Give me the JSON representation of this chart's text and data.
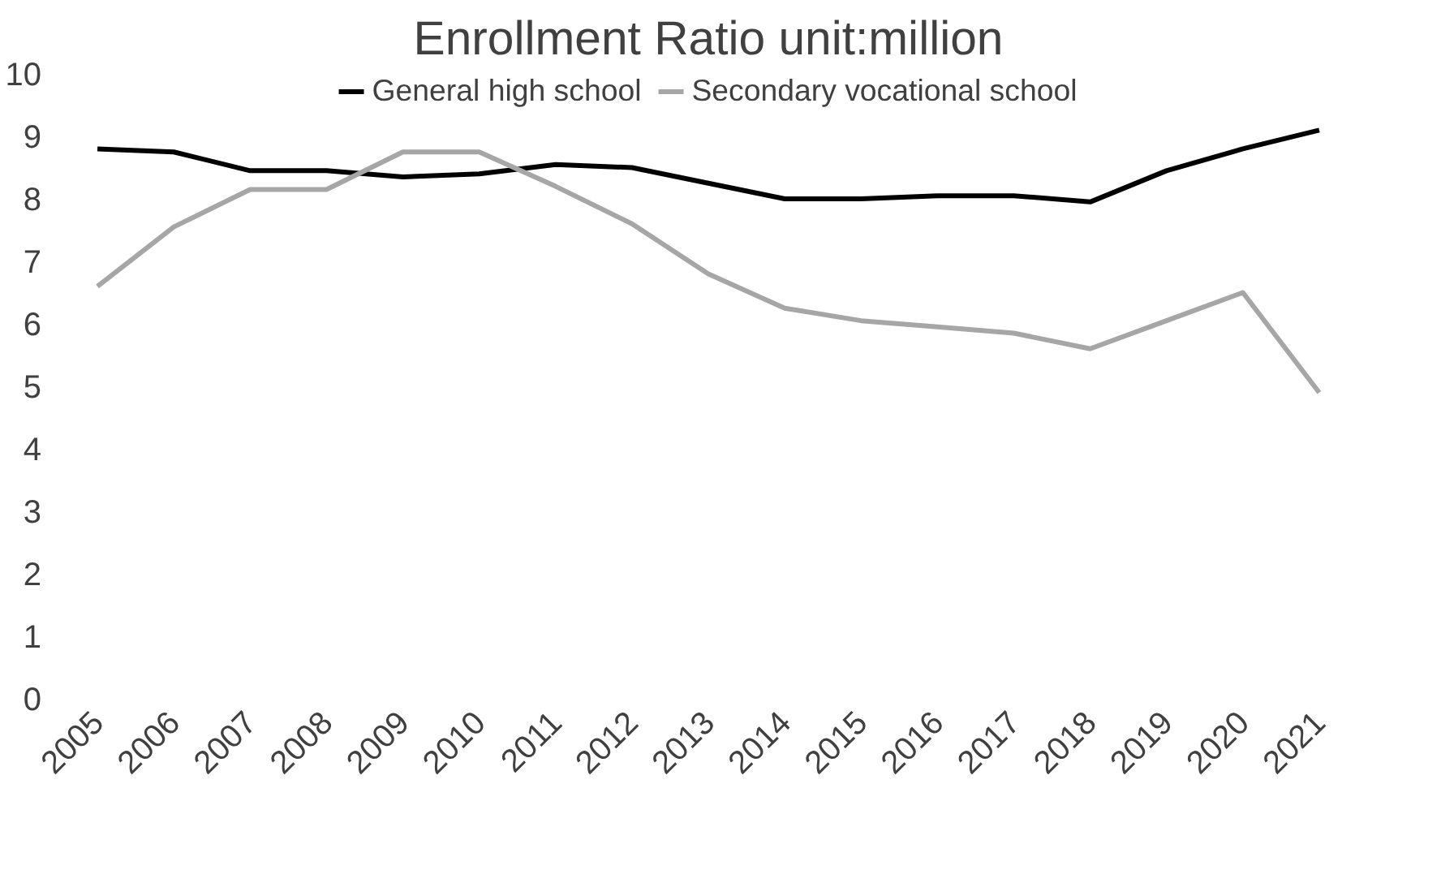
{
  "chart_data": {
    "type": "line",
    "title": "Enrollment Ratio unit:million",
    "categories": [
      "2005",
      "2006",
      "2007",
      "2008",
      "2009",
      "2010",
      "2011",
      "2012",
      "2013",
      "2014",
      "2015",
      "2016",
      "2017",
      "2018",
      "2019",
      "2020",
      "2021"
    ],
    "series": [
      {
        "name": "General high school",
        "color": "#000000",
        "values": [
          8.8,
          8.75,
          8.45,
          8.45,
          8.35,
          8.4,
          8.55,
          8.5,
          8.25,
          8.0,
          8.0,
          8.05,
          8.05,
          7.95,
          8.45,
          8.8,
          9.1
        ]
      },
      {
        "name": "Secondary vocational school",
        "color": "#a6a6a6",
        "values": [
          6.6,
          7.55,
          8.15,
          8.15,
          8.75,
          8.75,
          8.2,
          7.6,
          6.8,
          6.25,
          6.05,
          5.95,
          5.85,
          5.6,
          6.05,
          6.5,
          4.9
        ]
      }
    ],
    "ylim": [
      0,
      10
    ],
    "yticks": [
      0,
      1,
      2,
      3,
      4,
      5,
      6,
      7,
      8,
      9,
      10
    ],
    "grid": false,
    "legend": "top",
    "marker": "none",
    "line_style": "solid"
  }
}
